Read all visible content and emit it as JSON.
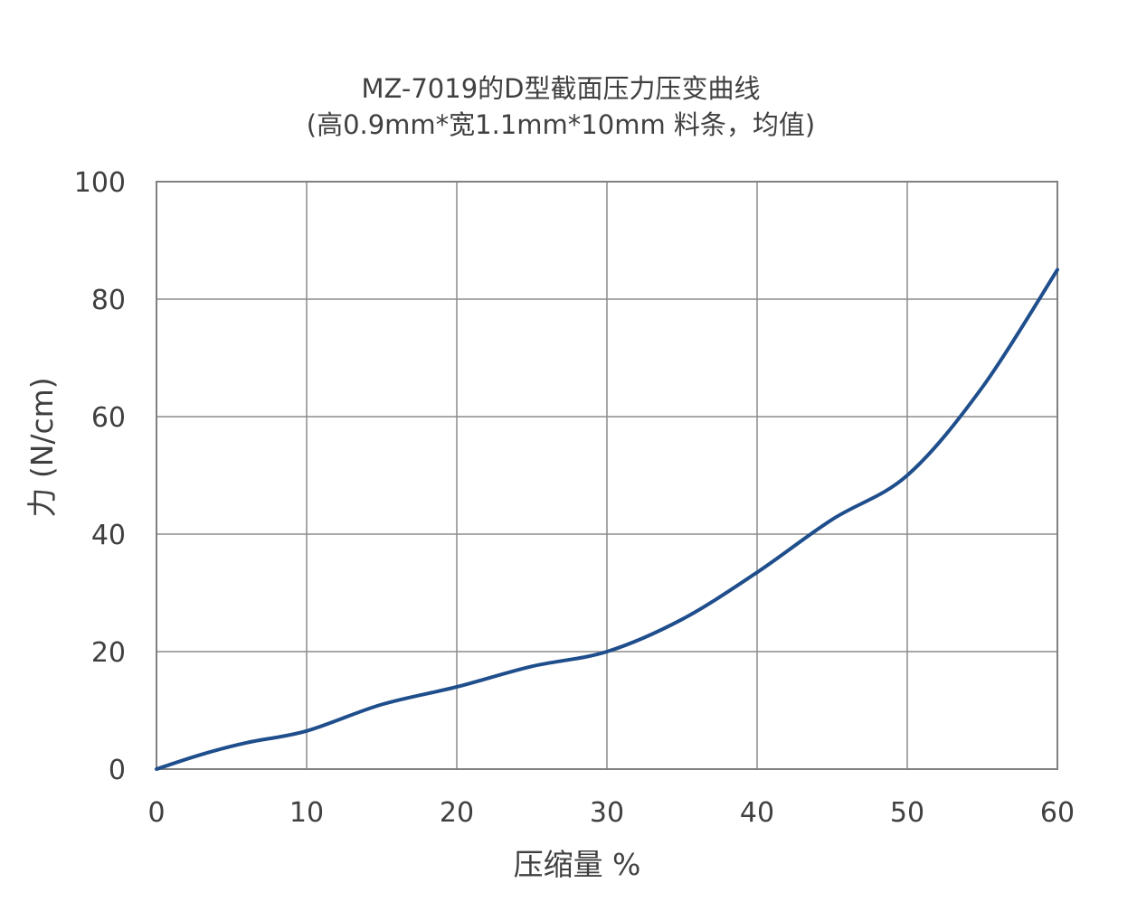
{
  "chart_data": {
    "type": "line",
    "title": "MZ-7019的D型截面压力压变曲线",
    "subtitle": "(高0.9mm*宽1.1mm*10mm 料条，均值)",
    "xlabel": "压缩量 %",
    "ylabel": "力 (N/cm)",
    "xlim": [
      0,
      60
    ],
    "ylim": [
      0,
      100
    ],
    "xticks": [
      0,
      10,
      20,
      30,
      40,
      50,
      60
    ],
    "yticks": [
      0,
      20,
      40,
      60,
      80,
      100
    ],
    "grid": true,
    "series": [
      {
        "color": "#1f4e8c",
        "x": [
          0,
          3,
          6,
          10,
          15,
          20,
          25,
          30,
          35,
          40,
          45,
          50,
          55,
          60
        ],
        "y": [
          0,
          2.5,
          4.5,
          6.5,
          11,
          14,
          17.5,
          20,
          25.5,
          33.5,
          42.5,
          50,
          65,
          85
        ]
      }
    ]
  }
}
